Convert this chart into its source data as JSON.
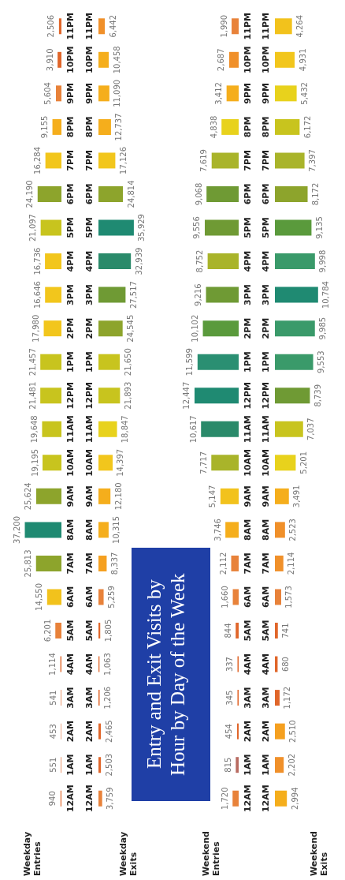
{
  "chart_data": [
    {
      "type": "bar",
      "orientation": "horizontal",
      "ylabel": "Weekday Entries",
      "tick_labels": "y",
      "categories": [
        "11PM",
        "10PM",
        "9PM",
        "8PM",
        "7PM",
        "6PM",
        "5PM",
        "4PM",
        "3PM",
        "2PM",
        "1PM",
        "12PM",
        "11AM",
        "10AM",
        "9AM",
        "8AM",
        "7AM",
        "6AM",
        "5AM",
        "4AM",
        "3AM",
        "2AM",
        "1AM",
        "12AM"
      ],
      "values": [
        2506,
        3910,
        5604,
        9155,
        16284,
        24190,
        21097,
        16736,
        16646,
        17980,
        21457,
        21481,
        19648,
        19195,
        25624,
        37200,
        25813,
        14550,
        6201,
        1114,
        541,
        453,
        551,
        940
      ],
      "value_labels": [
        "2,506",
        "3,910",
        "5,604",
        "9,155",
        "16,284",
        "24,190",
        "21,097",
        "16,736",
        "16,646",
        "17,980",
        "21,457",
        "21,481",
        "19,648",
        "19,195",
        "25,624",
        "37,200",
        "25,813",
        "14,550",
        "6,201",
        "1,114",
        "541",
        "453",
        "551",
        "940"
      ],
      "colors": [
        "#e0662a",
        "#e0662a",
        "#e8823a",
        "#f5ae1c",
        "#f2c61c",
        "#8da42c",
        "#c8c41e",
        "#f2c61c",
        "#f2c61c",
        "#f2c61c",
        "#c8c41e",
        "#c8c41e",
        "#c8c41e",
        "#c8c41e",
        "#8da42c",
        "#1f8a72",
        "#8da42c",
        "#f2c21c",
        "#e8823a",
        "#e0662a",
        "#e0662a",
        "#e0662a",
        "#e0662a",
        "#e0662a"
      ]
    },
    {
      "type": "bar",
      "orientation": "horizontal",
      "ylabel": "Weekday Exits",
      "tick_labels": "y",
      "categories": [
        "11PM",
        "10PM",
        "9PM",
        "8PM",
        "7PM",
        "6PM",
        "5PM",
        "4PM",
        "3PM",
        "2PM",
        "1PM",
        "12PM",
        "11AM",
        "10AM",
        "9AM",
        "8AM",
        "7AM",
        "6AM",
        "5AM",
        "4AM",
        "3AM",
        "2AM",
        "1AM",
        "12AM"
      ],
      "values": [
        6442,
        10458,
        11090,
        12737,
        17126,
        24814,
        35929,
        32939,
        27517,
        24545,
        21650,
        21893,
        18847,
        14397,
        12180,
        10315,
        8337,
        5259,
        1805,
        1063,
        1206,
        2465,
        2503,
        3759
      ],
      "value_labels": [
        "6,442",
        "10,458",
        "11,090",
        "12,737",
        "17,126",
        "24,814",
        "35,929",
        "32,939",
        "27,517",
        "24,545",
        "21,650",
        "21,893",
        "18,847",
        "14,397",
        "12,180",
        "10,315",
        "8,337",
        "5,259",
        "1,805",
        "1,063",
        "1,206",
        "2,465",
        "2,503",
        "3,759"
      ],
      "colors": [
        "#f0902a",
        "#f5ae1c",
        "#f5ae1c",
        "#f5ae1c",
        "#f2c61c",
        "#8da42c",
        "#1f8a72",
        "#2a8a6a",
        "#6f9a34",
        "#8da42c",
        "#c8c41e",
        "#c8c41e",
        "#e8d21c",
        "#f2c61c",
        "#f5ae1c",
        "#f5ae1c",
        "#f5a020",
        "#e8823a",
        "#e0662a",
        "#e0662a",
        "#e0662a",
        "#e0662a",
        "#e0662a",
        "#e8823a"
      ]
    },
    {
      "type": "bar",
      "orientation": "horizontal",
      "ylabel": "Weekend Entries",
      "tick_labels": "y",
      "categories": [
        "11PM",
        "10PM",
        "9PM",
        "8PM",
        "7PM",
        "6PM",
        "5PM",
        "4PM",
        "3PM",
        "2PM",
        "1PM",
        "12PM",
        "11AM",
        "10AM",
        "9AM",
        "8AM",
        "7AM",
        "6AM",
        "5AM",
        "4AM",
        "3AM",
        "2AM",
        "1AM",
        "12AM"
      ],
      "values": [
        1990,
        2687,
        3412,
        4838,
        7619,
        9068,
        9556,
        8752,
        9216,
        10102,
        11599,
        12447,
        10617,
        7717,
        5147,
        3746,
        2112,
        1660,
        844,
        337,
        345,
        454,
        815,
        1720
      ],
      "value_labels": [
        "1,990",
        "2,687",
        "3,412",
        "4,838",
        "7,619",
        "9,068",
        "9,556",
        "8,752",
        "9,216",
        "10,102",
        "11,599",
        "12,447",
        "10,617",
        "7,717",
        "5,147",
        "3,746",
        "2,112",
        "1,660",
        "844",
        "337",
        "345",
        "454",
        "815",
        "1,720"
      ],
      "colors": [
        "#e8823a",
        "#f0902a",
        "#f5ae1c",
        "#e8d21c",
        "#a9b42a",
        "#6f9a34",
        "#6f9a34",
        "#a9b42a",
        "#6f9a34",
        "#5a9a3c",
        "#2a8f72",
        "#1f8a72",
        "#2a8a6a",
        "#a9b42a",
        "#f2c21c",
        "#f5ae1c",
        "#e8823a",
        "#e8823a",
        "#e0662a",
        "#e0662a",
        "#e0662a",
        "#e0662a",
        "#b86a60",
        "#e8823a"
      ]
    },
    {
      "type": "bar",
      "orientation": "horizontal",
      "ylabel": "Weekend Exits",
      "tick_labels": "y",
      "categories": [
        "11PM",
        "10PM",
        "9PM",
        "8PM",
        "7PM",
        "6PM",
        "5PM",
        "4PM",
        "3PM",
        "2PM",
        "1PM",
        "12PM",
        "11AM",
        "10AM",
        "9AM",
        "8AM",
        "7AM",
        "6AM",
        "5AM",
        "4AM",
        "3AM",
        "2AM",
        "1AM",
        "12AM"
      ],
      "values": [
        4264,
        4931,
        5432,
        6172,
        7397,
        8172,
        9135,
        9998,
        10784,
        9985,
        9553,
        8739,
        7037,
        5201,
        3491,
        2523,
        2114,
        1573,
        741,
        680,
        1172,
        2510,
        2202,
        2994
      ],
      "value_labels": [
        "4,264",
        "4,931",
        "5,432",
        "6,172",
        "7,397",
        "8,172",
        "9,135",
        "9,998",
        "10,784",
        "9,985",
        "9,553",
        "8,739",
        "7,037",
        "5,201",
        "3,491",
        "2,523",
        "2,114",
        "1,573",
        "741",
        "680",
        "1,172",
        "2,510",
        "2,202",
        "2,994"
      ],
      "colors": [
        "#f2c21c",
        "#f2c61c",
        "#e8d21c",
        "#c8c41e",
        "#a9b42a",
        "#8da42c",
        "#5a9a3c",
        "#3a9a6a",
        "#1f8a72",
        "#3a9a6a",
        "#3a9a6a",
        "#6f9a34",
        "#c8c41e",
        "#e8d21c",
        "#f5ae1c",
        "#f0902a",
        "#f0902a",
        "#e8823a",
        "#e0662a",
        "#e0662a",
        "#e0662a",
        "#f5a020",
        "#f0902a",
        "#f5ae1c"
      ]
    },
    {
      "type": "other",
      "title": "Entry and Exit Visits by Hour by Day of the Week"
    }
  ]
}
